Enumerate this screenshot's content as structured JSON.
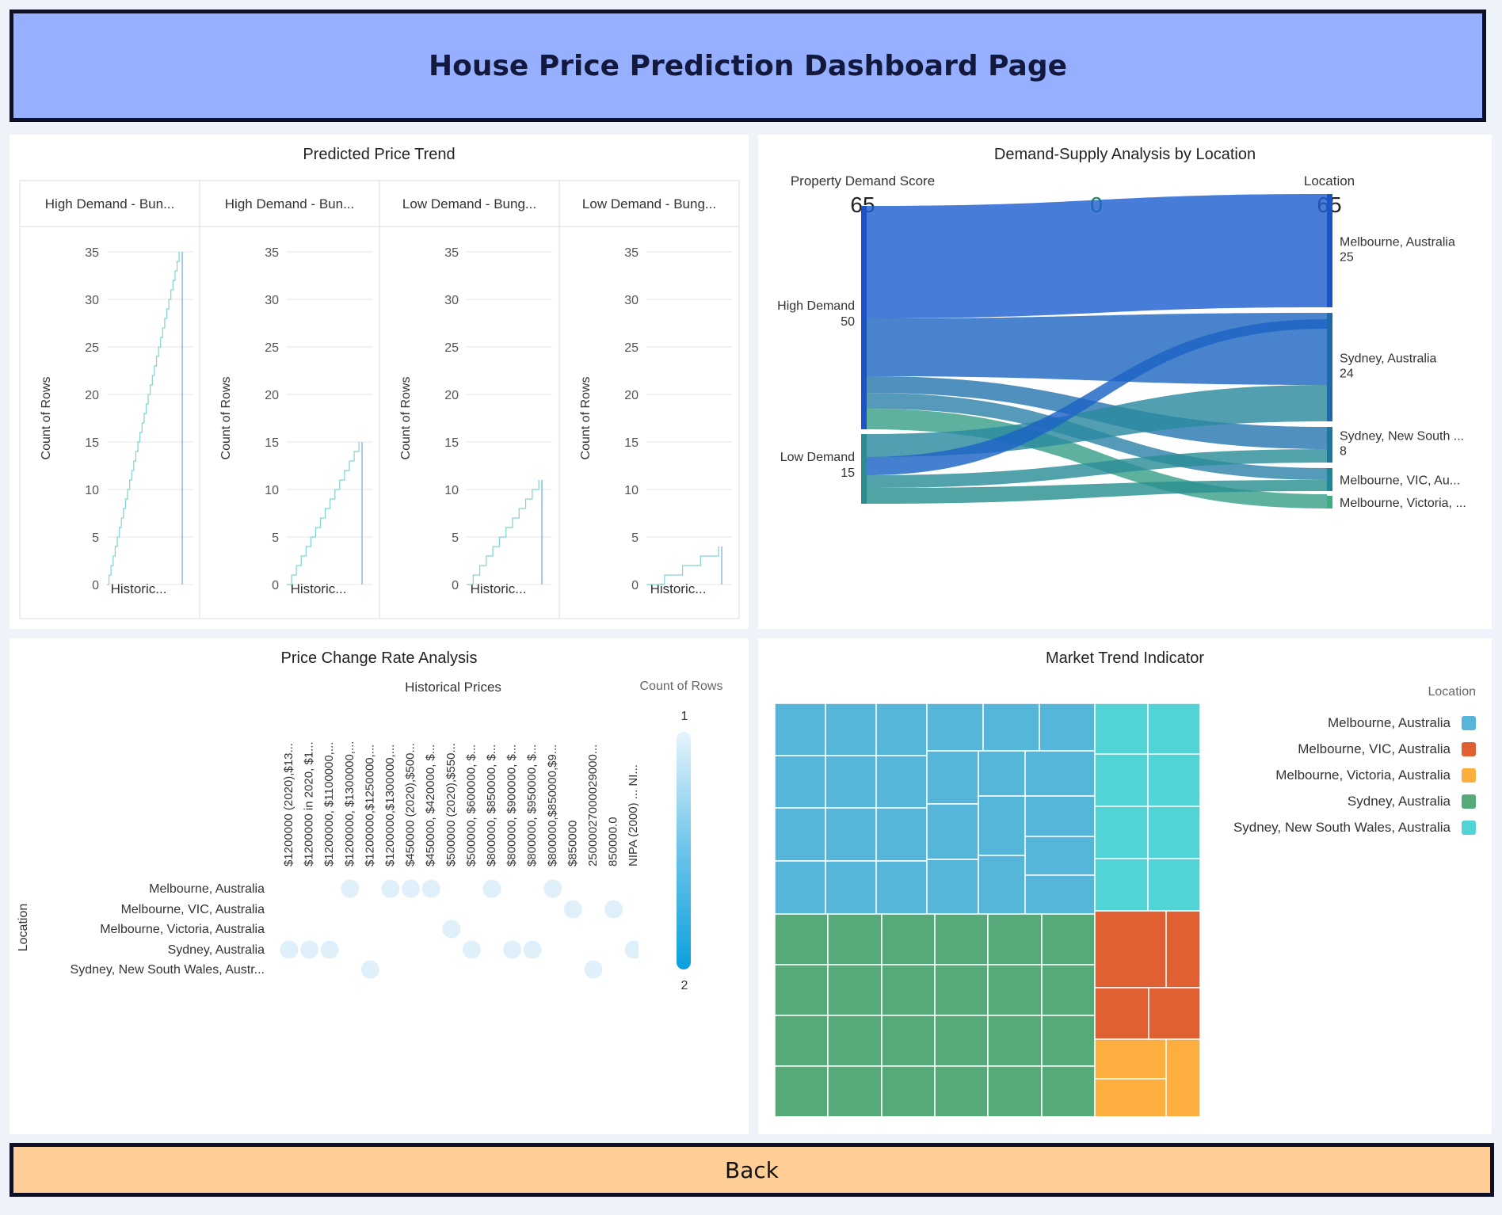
{
  "header": {
    "title": "House Price Prediction Dashboard Page"
  },
  "back_button": {
    "label": "Back"
  },
  "price_trend": {
    "title": "Predicted Price Trend",
    "facets": [
      "High Demand - Bun...",
      "High Demand - Bun...",
      "Low Demand - Bung...",
      "Low Demand - Bung..."
    ],
    "y_label": "Count of Rows",
    "x_label": "Historic...",
    "y_ticks": [
      "35",
      "30",
      "25",
      "20",
      "15",
      "10",
      "5",
      "0"
    ]
  },
  "sankey": {
    "title": "Demand-Supply Analysis by Location",
    "left_header": "Property Demand Score",
    "left_total": "65",
    "center_value": "0",
    "right_header": "Location",
    "right_total": "65",
    "left_nodes": [
      {
        "label": "High Demand",
        "value": "50"
      },
      {
        "label": "Low Demand",
        "value": "15"
      }
    ],
    "right_nodes": [
      {
        "label": "Melbourne, Australia",
        "value": "25"
      },
      {
        "label": "Sydney, Australia",
        "value": "24"
      },
      {
        "label": "Sydney, New South ...",
        "value": "8"
      },
      {
        "label": "Melbourne, VIC, Au...",
        "value": ""
      },
      {
        "label": "Melbourne, Victoria, ...",
        "value": ""
      }
    ]
  },
  "price_change": {
    "title": "Price Change Rate Analysis",
    "x_title": "Historical Prices",
    "y_title": "Location",
    "legend_title": "Count of Rows",
    "legend_max": "1",
    "legend_min": "2",
    "columns": [
      "$1200000 (2020),$13...",
      "$1200000 in 2020, $1...",
      "$1200000, $1100000,...",
      "$1200000, $1300000,...",
      "$1200000,$1250000,...",
      "$1200000,$1300000,...",
      "$450000 (2020),$500...",
      "$450000, $420000, $...",
      "$500000 (2020),$550...",
      "$500000, $600000, $...",
      "$800000, $850000, $...",
      "$800000, $900000, $...",
      "$800000, $950000, $...",
      "$800000,$850000,$9...",
      "$850000",
      "25000027000029000...",
      "850000.0",
      "NIPA (2000) ...  NI..."
    ],
    "rows": [
      "Melbourne, Australia",
      "Melbourne, VIC, Australia",
      "Melbourne, Victoria, Australia",
      "Sydney, Australia",
      "Sydney, New South Wales, Austr..."
    ]
  },
  "market_trend": {
    "title": "Market Trend Indicator",
    "legend_title": "Location",
    "legend": [
      {
        "label": "Melbourne, Australia",
        "color": "#55b6da"
      },
      {
        "label": "Melbourne, VIC, Australia",
        "color": "#e06033"
      },
      {
        "label": "Melbourne, Victoria, Australia",
        "color": "#fcae3f"
      },
      {
        "label": "Sydney, Australia",
        "color": "#56a978"
      },
      {
        "label": "Sydney, New South Wales, Australia",
        "color": "#52d3d5"
      }
    ]
  },
  "chart_data": [
    {
      "type": "bar",
      "title": "Predicted Price Trend",
      "ylabel": "Count of Rows",
      "xlabel": "Historic...",
      "ylim": [
        0,
        35
      ],
      "series": [
        {
          "name": "High Demand - Bun...",
          "max_count": 35
        },
        {
          "name": "High Demand - Bun...",
          "max_count": 15
        },
        {
          "name": "Low Demand - Bung...",
          "max_count": 11
        },
        {
          "name": "Low Demand - Bung...",
          "max_count": 4
        }
      ]
    },
    {
      "type": "sankey",
      "title": "Demand-Supply Analysis by Location",
      "sources": [
        {
          "name": "High Demand",
          "value": 50
        },
        {
          "name": "Low Demand",
          "value": 15
        }
      ],
      "targets": [
        {
          "name": "Melbourne, Australia",
          "value": 25
        },
        {
          "name": "Sydney, Australia",
          "value": 24
        },
        {
          "name": "Sydney, New South ...",
          "value": 8
        },
        {
          "name": "Melbourne, VIC, Au...",
          "value": 4
        },
        {
          "name": "Melbourne, Victoria, ...",
          "value": 4
        }
      ]
    },
    {
      "type": "scatter",
      "title": "Price Change Rate Analysis",
      "xlabel": "Historical Prices",
      "ylabel": "Location",
      "points": [
        {
          "row": 0,
          "col": 3
        },
        {
          "row": 0,
          "col": 5
        },
        {
          "row": 0,
          "col": 6
        },
        {
          "row": 0,
          "col": 7
        },
        {
          "row": 0,
          "col": 10
        },
        {
          "row": 0,
          "col": 13
        },
        {
          "row": 1,
          "col": 14
        },
        {
          "row": 1,
          "col": 16
        },
        {
          "row": 2,
          "col": 8
        },
        {
          "row": 3,
          "col": 0
        },
        {
          "row": 3,
          "col": 1
        },
        {
          "row": 3,
          "col": 2
        },
        {
          "row": 3,
          "col": 9
        },
        {
          "row": 3,
          "col": 11
        },
        {
          "row": 3,
          "col": 12
        },
        {
          "row": 3,
          "col": 17
        },
        {
          "row": 4,
          "col": 4
        },
        {
          "row": 4,
          "col": 15
        }
      ]
    },
    {
      "type": "treemap",
      "title": "Market Trend Indicator",
      "groups": [
        {
          "name": "Melbourne, Australia",
          "count": 25
        },
        {
          "name": "Sydney, Australia",
          "count": 24
        },
        {
          "name": "Sydney, New South Wales, Australia",
          "count": 8
        },
        {
          "name": "Melbourne, VIC, Australia",
          "count": 4
        },
        {
          "name": "Melbourne, Victoria, Australia",
          "count": 4
        }
      ]
    }
  ]
}
